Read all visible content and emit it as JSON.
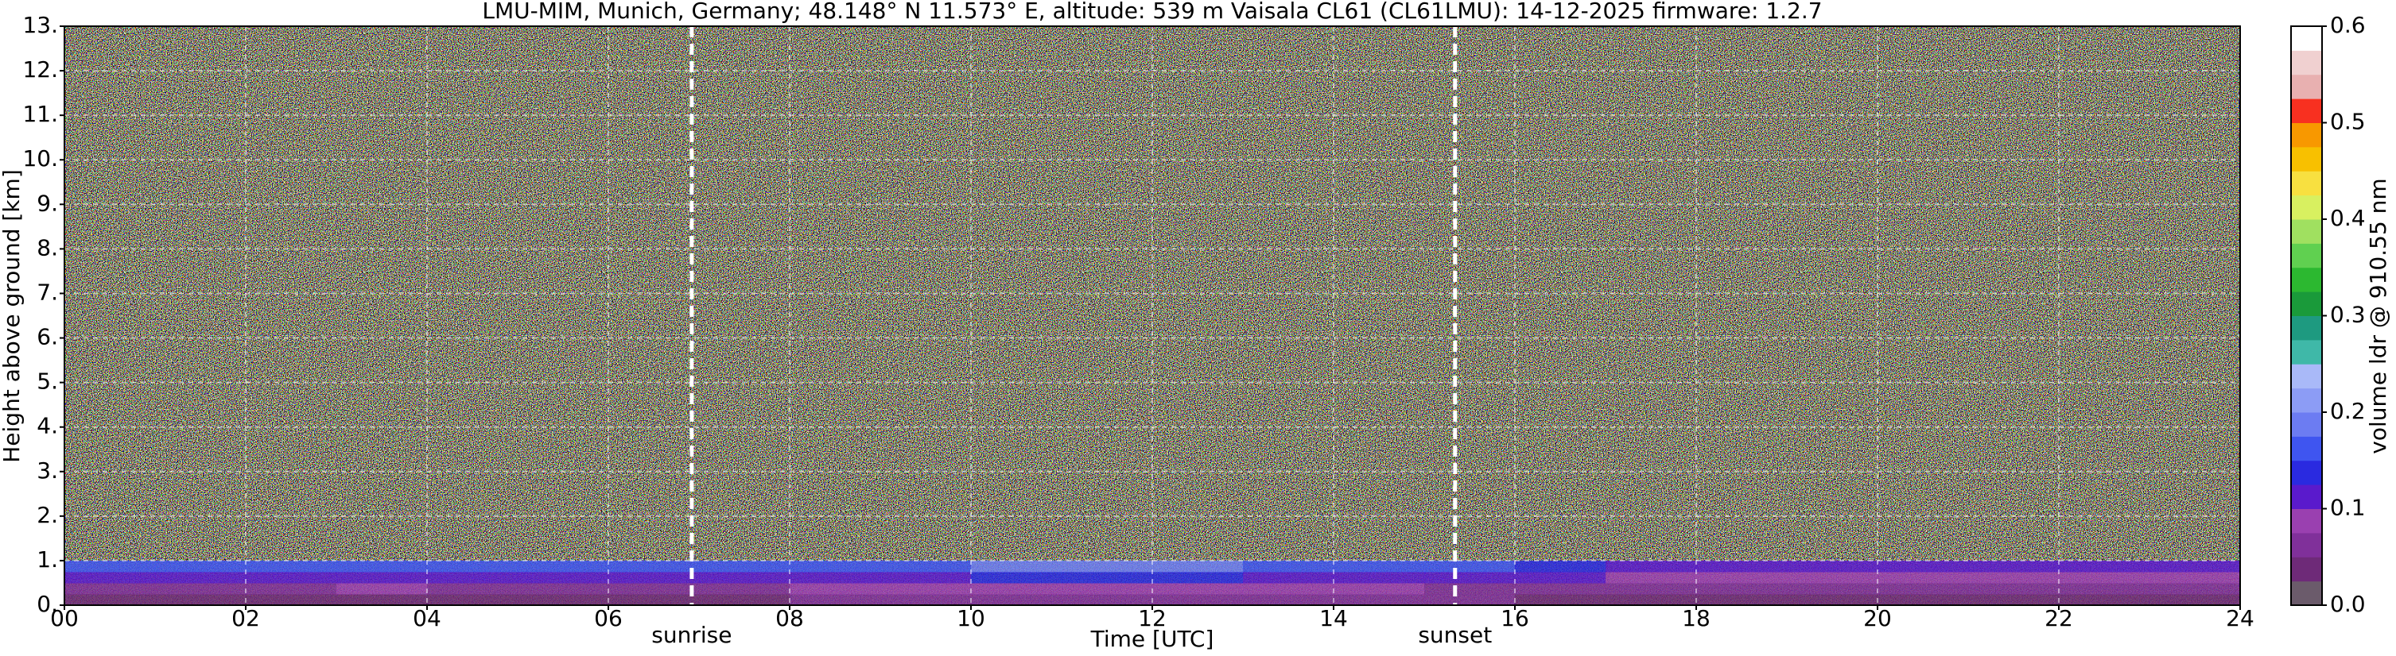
{
  "chart_data": {
    "type": "heatmap",
    "title": "LMU-MIM, Munich, Germany; 48.148° N 11.573° E, altitude: 539 m    Vaisala CL61 (CL61LMU): 14-12-2025    firmware: 1.2.7",
    "x_label": "Time [UTC]",
    "y_label": "Height above ground [km]",
    "xlim": [
      0,
      24
    ],
    "xticks": [
      {
        "value": 0,
        "label": "00"
      },
      {
        "value": 2,
        "label": "02"
      },
      {
        "value": 4,
        "label": "04"
      },
      {
        "value": 6,
        "label": "06"
      },
      {
        "value": 8,
        "label": "08"
      },
      10,
      12,
      14,
      16,
      18,
      20,
      22,
      24
    ],
    "ylim": [
      0,
      13
    ],
    "yticks": [
      {
        "value": 0,
        "label": "0."
      },
      {
        "value": 1,
        "label": "1."
      },
      {
        "value": 2,
        "label": "2."
      },
      {
        "value": 3,
        "label": "3."
      },
      {
        "value": 4,
        "label": "4."
      },
      {
        "value": 5,
        "label": "5."
      },
      {
        "value": 6,
        "label": "6."
      },
      {
        "value": 7,
        "label": "7."
      },
      {
        "value": 8,
        "label": "8."
      },
      {
        "value": 9,
        "label": "9."
      },
      {
        "value": 10,
        "label": "10."
      },
      {
        "value": 11,
        "label": "11."
      },
      {
        "value": 12,
        "label": "12."
      },
      {
        "value": 13,
        "label": "13."
      }
    ],
    "grid": true,
    "x_edges": [
      0,
      1,
      2,
      3,
      4,
      5,
      6,
      7,
      8,
      9,
      10,
      11,
      12,
      13,
      14,
      15,
      16,
      17,
      18,
      19,
      20,
      21,
      22,
      23,
      24
    ],
    "y_edges": [
      0,
      0.25,
      0.5,
      0.75,
      1
    ],
    "z": [
      [
        0.04,
        0.04,
        0.04,
        0.04,
        0.04,
        0.04,
        0.04,
        0.04,
        0.05,
        0.05,
        0.06,
        0.06,
        0.06,
        0.06,
        0.05,
        0.05,
        0.04,
        0.04,
        0.04,
        0.04,
        0.04,
        0.04,
        0.04,
        0.04
      ],
      [
        0.07,
        0.07,
        0.07,
        0.08,
        0.07,
        0.07,
        0.07,
        0.07,
        0.08,
        0.08,
        0.09,
        0.09,
        0.09,
        0.08,
        0.08,
        0.07,
        0.07,
        0.06,
        0.06,
        0.06,
        0.06,
        0.06,
        0.06,
        0.06
      ],
      [
        0.11,
        0.11,
        0.11,
        0.12,
        0.11,
        0.11,
        0.11,
        0.12,
        0.12,
        0.12,
        0.13,
        0.13,
        0.13,
        0.12,
        0.12,
        0.11,
        0.1,
        0.09,
        0.09,
        0.09,
        0.09,
        0.09,
        0.09,
        0.09
      ],
      [
        0.16,
        0.16,
        0.15,
        0.16,
        0.15,
        0.15,
        0.16,
        0.16,
        0.17,
        0.17,
        0.18,
        0.18,
        0.18,
        0.17,
        0.17,
        0.16,
        0.14,
        0.12,
        0.12,
        0.12,
        0.12,
        0.12,
        0.12,
        0.12
      ]
    ],
    "events": [
      {
        "x": 6.92,
        "label": "sunrise"
      },
      {
        "x": 15.34,
        "label": "sunset"
      }
    ],
    "colorbar": {
      "label": "volume ldr @ 910.55 nm",
      "clim": [
        0,
        0.6
      ],
      "ticks": [
        {
          "value": 0,
          "label": "0.0"
        },
        {
          "value": 0.1,
          "label": "0.1"
        },
        {
          "value": 0.2,
          "label": "0.2"
        },
        {
          "value": 0.3,
          "label": "0.3"
        },
        {
          "value": 0.4,
          "label": "0.4"
        },
        {
          "value": 0.5,
          "label": "0.5"
        },
        {
          "value": 0.6,
          "label": "0.6"
        }
      ],
      "colors": [
        "#6b5b6b",
        "#6e2a78",
        "#80309a",
        "#9a40b0",
        "#5a1acc",
        "#2a2ae0",
        "#3f55f0",
        "#6c7cf2",
        "#8c9cf5",
        "#a9b9f8",
        "#3fb8a8",
        "#1e9a80",
        "#1a9a3a",
        "#2cb830",
        "#60d050",
        "#a0e060",
        "#d8f060",
        "#f8e040",
        "#f8c000",
        "#f89800",
        "#f83020",
        "#e8b0b0",
        "#f0d0d0",
        "#ffffff"
      ]
    }
  }
}
